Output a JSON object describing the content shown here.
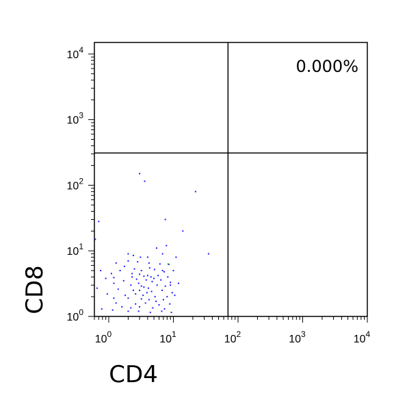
{
  "chart_data": {
    "type": "scatter",
    "title": "",
    "xlabel": "CD4",
    "ylabel": "CD8",
    "xscale": "log",
    "yscale": "log",
    "xlim": [
      0.6,
      10000
    ],
    "ylim": [
      1,
      15000
    ],
    "x_ticks": [
      {
        "base": "10",
        "exp": "0",
        "value": 1
      },
      {
        "base": "10",
        "exp": "1",
        "value": 10
      },
      {
        "base": "10",
        "exp": "2",
        "value": 100
      },
      {
        "base": "10",
        "exp": "3",
        "value": 1000
      },
      {
        "base": "10",
        "exp": "4",
        "value": 10000
      }
    ],
    "y_ticks": [
      {
        "base": "10",
        "exp": "0",
        "value": 1
      },
      {
        "base": "10",
        "exp": "1",
        "value": 10
      },
      {
        "base": "10",
        "exp": "2",
        "value": 100
      },
      {
        "base": "10",
        "exp": "3",
        "value": 1000
      },
      {
        "base": "10",
        "exp": "4",
        "value": 10000
      }
    ],
    "gates": {
      "x": 70,
      "y": 310
    },
    "quadrant_label": "0.000%",
    "quadrant_label_position": "top-right",
    "point_color": "#1a1aff",
    "highlight_color": "#22aa22",
    "points": [
      [
        3.0,
        150
      ],
      [
        3.6,
        115
      ],
      [
        22,
        80
      ],
      [
        7.5,
        30
      ],
      [
        0.7,
        28
      ],
      [
        14,
        20
      ],
      [
        0.62,
        15
      ],
      [
        35,
        9
      ],
      [
        7.8,
        12
      ],
      [
        5.5,
        11
      ],
      [
        2.0,
        9
      ],
      [
        2.4,
        8.5
      ],
      [
        4.0,
        8
      ],
      [
        6.8,
        9
      ],
      [
        3.1,
        8
      ],
      [
        11,
        8
      ],
      [
        2.0,
        7
      ],
      [
        1.3,
        6.5
      ],
      [
        2.8,
        6.8
      ],
      [
        4.2,
        6.5
      ],
      [
        6.2,
        6.3
      ],
      [
        8.5,
        6.2
      ],
      [
        0.75,
        5
      ],
      [
        1.5,
        5
      ],
      [
        2.5,
        5.3
      ],
      [
        3.2,
        5
      ],
      [
        5.1,
        5.2
      ],
      [
        7.2,
        4.8
      ],
      [
        10,
        5
      ],
      [
        1.1,
        4.5
      ],
      [
        2.3,
        4.5
      ],
      [
        3.0,
        4.4
      ],
      [
        3.5,
        4.1
      ],
      [
        4.0,
        4.2
      ],
      [
        4.5,
        4.0
      ],
      [
        5.8,
        4.2
      ],
      [
        8.2,
        4.0
      ],
      [
        0.9,
        3.8
      ],
      [
        1.7,
        3.5
      ],
      [
        2.7,
        3.7
      ],
      [
        3.8,
        3.6
      ],
      [
        4.7,
        3.4
      ],
      [
        6.4,
        3.6
      ],
      [
        9.0,
        3.3
      ],
      [
        1.2,
        3.2
      ],
      [
        2.2,
        3.0
      ],
      [
        3.2,
        2.9
      ],
      [
        3.5,
        2.8
      ],
      [
        4.1,
        2.7
      ],
      [
        5.6,
        3.0
      ],
      [
        7.5,
        2.9
      ],
      [
        12,
        3.2
      ],
      [
        0.66,
        2.7
      ],
      [
        1.4,
        2.6
      ],
      [
        2.4,
        2.5
      ],
      [
        3.0,
        2.5
      ],
      [
        4.6,
        2.4
      ],
      [
        6.7,
        2.5
      ],
      [
        9.6,
        2.3
      ],
      [
        0.95,
        2.2
      ],
      [
        1.8,
        2.1
      ],
      [
        2.6,
        2.2
      ],
      [
        3.4,
        2.1
      ],
      [
        5.2,
        2.0
      ],
      [
        8.0,
        2.0
      ],
      [
        10.5,
        2.1
      ],
      [
        1.2,
        1.9
      ],
      [
        2.0,
        1.9
      ],
      [
        3.2,
        1.85
      ],
      [
        4.2,
        1.8
      ],
      [
        5.4,
        1.7
      ],
      [
        7.0,
        1.8
      ],
      [
        1.3,
        1.6
      ],
      [
        2.6,
        1.55
      ],
      [
        3.7,
        1.6
      ],
      [
        6.0,
        1.5
      ],
      [
        8.8,
        1.55
      ],
      [
        1.6,
        1.4
      ],
      [
        2.2,
        1.35
      ],
      [
        3.0,
        1.4
      ],
      [
        4.8,
        1.35
      ],
      [
        7.3,
        1.3
      ],
      [
        0.78,
        1.3
      ],
      [
        1.15,
        1.25
      ],
      [
        2.0,
        1.2
      ],
      [
        2.9,
        1.2
      ],
      [
        4.4,
        1.15
      ],
      [
        6.6,
        1.2
      ],
      [
        9.3,
        1.15
      ],
      [
        1.2,
        3.9
      ],
      [
        1.75,
        5.8
      ],
      [
        2.9,
        3.2
      ],
      [
        3.9,
        2.3
      ],
      [
        5.0,
        3.8
      ],
      [
        6.8,
        5.0
      ],
      [
        9.0,
        3.0
      ],
      [
        2.3,
        4.0
      ],
      [
        4.3,
        5.5
      ]
    ],
    "highlight_points": [
      [
        8.3,
        6.3
      ]
    ]
  }
}
